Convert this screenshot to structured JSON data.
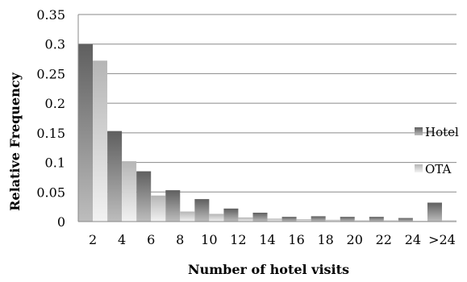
{
  "chart_data": {
    "type": "bar",
    "categories": [
      "2",
      "4",
      "6",
      "8",
      "10",
      "12",
      "14",
      "16",
      "18",
      "20",
      "22",
      "24",
      ">24"
    ],
    "series": [
      {
        "name": "Hotel",
        "values": [
          0.3,
          0.153,
          0.085,
          0.053,
          0.038,
          0.022,
          0.015,
          0.008,
          0.009,
          0.008,
          0.008,
          0.006,
          0.032
        ]
      },
      {
        "name": "OTA",
        "values": [
          0.272,
          0.102,
          0.044,
          0.017,
          0.013,
          0.007,
          0.005,
          0.004,
          0.003,
          0.002,
          0.002,
          0.001,
          0.002
        ]
      }
    ],
    "yticks": [
      "0",
      "0.05",
      "0.1",
      "0.15",
      "0.2",
      "0.25",
      "0.3",
      "0.35"
    ],
    "ylim": [
      0,
      0.35
    ],
    "xlabel": "Number of hotel visits",
    "ylabel": "Relative Frequency",
    "grid": true,
    "legend_position": "right",
    "colors": {
      "hotel_dark": "#5f5f5f",
      "hotel_light": "#bdbdbd",
      "ota_dark": "#b5b5b5",
      "ota_light": "#f2f2f2",
      "grid": "#8a8a8a"
    }
  }
}
